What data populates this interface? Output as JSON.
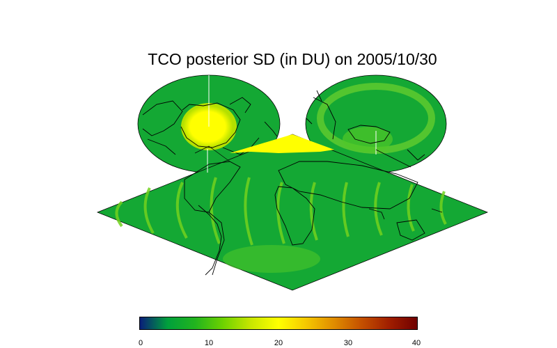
{
  "title": "TCO posterior SD (in DU) on 2005/10/30",
  "colorbar": {
    "ticks": [
      "0",
      "10",
      "20",
      "30",
      "40"
    ],
    "range": [
      0,
      40
    ],
    "stops": [
      "#0a1e7a",
      "#00a03c",
      "#22b41e",
      "#6ed200",
      "#c8e600",
      "#ffff00",
      "#f5c800",
      "#e08c00",
      "#c45000",
      "#a01e00",
      "#700000"
    ]
  },
  "colors": {
    "background_value": "#14a834",
    "high_value": "#ffff00",
    "moderate_value": "#7ad214",
    "coastline": "#000000"
  },
  "map": {
    "projection": "interrupted sinusoidal with polar insets"
  }
}
